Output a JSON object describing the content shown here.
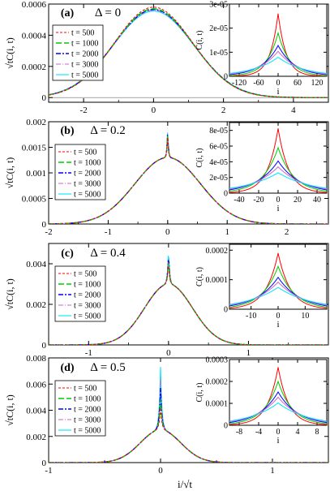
{
  "figure": {
    "xlabel": "i/√t",
    "ylabel": "√tC(i, t)"
  },
  "colors": {
    "t500": "#ff0000",
    "t1000": "#00cc00",
    "t2000": "#0000ff",
    "t3000": "#cc66cc",
    "t5000": "#00e5ff",
    "axis": "#000000"
  },
  "chart_data": [
    {
      "type": "line",
      "panel": "(a)",
      "annotation": "Δ = 0",
      "xlim": [
        -3.0,
        5.0
      ],
      "ylim": [
        -3e-05,
        0.0006
      ],
      "xticks": [
        -2,
        0,
        2,
        4
      ],
      "xtick_labels": [
        "-2",
        "0",
        "2",
        "4"
      ],
      "yticks": [
        0,
        0.0002,
        0.0004,
        0.0006
      ],
      "ytick_labels": [
        "0",
        "0.0002",
        "0.0004",
        "0.0006"
      ],
      "ylabel": "√tC(i, t)",
      "legend": [
        "t = 500",
        "t = 1000",
        "t = 2000",
        "t = 3000",
        "t = 5000"
      ],
      "series": [
        {
          "name": "t = 500",
          "peak": 0.00058,
          "width": 1.12,
          "cusp": 0
        },
        {
          "name": "t = 1000",
          "peak": 0.00057,
          "width": 1.13,
          "cusp": 0
        },
        {
          "name": "t = 2000",
          "peak": 0.000565,
          "width": 1.14,
          "cusp": 0
        },
        {
          "name": "t = 3000",
          "peak": 0.00056,
          "width": 1.14,
          "cusp": 0
        },
        {
          "name": "t = 5000",
          "peak": 0.000555,
          "width": 1.15,
          "cusp": 0
        }
      ],
      "inset": {
        "xlabel": "i",
        "ylabel": "C(i, t)",
        "xlim": [
          -150,
          150
        ],
        "ylim": [
          0,
          3e-05
        ],
        "xticks": [
          -120,
          -60,
          0,
          60,
          120
        ],
        "xtick_labels": [
          "-120",
          "-60",
          "0",
          "60",
          "120"
        ],
        "yticks": [
          0,
          1e-05,
          2e-05,
          3e-05
        ],
        "ytick_labels": [
          "0",
          "1e-05",
          "2e-05",
          "3e-05"
        ],
        "series": [
          {
            "name": "t = 500",
            "peak": 2.6e-05,
            "width": 25
          },
          {
            "name": "t = 1000",
            "peak": 1.8e-05,
            "width": 36
          },
          {
            "name": "t = 2000",
            "peak": 1.28e-05,
            "width": 51
          },
          {
            "name": "t = 3000",
            "peak": 1.04e-05,
            "width": 62
          },
          {
            "name": "t = 5000",
            "peak": 7.9e-06,
            "width": 80
          }
        ]
      }
    },
    {
      "type": "line",
      "panel": "(b)",
      "annotation": "Δ = 0.2",
      "xlim": [
        -2.0,
        2.7
      ],
      "ylim": [
        0,
        0.002
      ],
      "xticks": [
        -2,
        -1,
        0,
        1,
        2
      ],
      "xtick_labels": [
        "-2",
        "-1",
        "0",
        "1",
        "2"
      ],
      "yticks": [
        0,
        0.0005,
        0.001,
        0.0015,
        0.002
      ],
      "ytick_labels": [
        "0",
        "0.0005",
        "0.001",
        "0.0015",
        "0.002"
      ],
      "ylabel": "√tC(i, t)",
      "legend": [
        "t = 500",
        "t = 1000",
        "t = 2000",
        "t = 3000",
        "t = 5000"
      ],
      "series": [
        {
          "name": "t = 500",
          "peak": 0.0013,
          "width": 0.55,
          "cusp": 0.00048
        },
        {
          "name": "t = 1000",
          "peak": 0.0013,
          "width": 0.55,
          "cusp": 0.00052
        },
        {
          "name": "t = 2000",
          "peak": 0.0013,
          "width": 0.55,
          "cusp": 0.00055
        },
        {
          "name": "t = 3000",
          "peak": 0.0013,
          "width": 0.55,
          "cusp": 0.00057
        },
        {
          "name": "t = 5000",
          "peak": 0.0013,
          "width": 0.55,
          "cusp": 0.0006
        }
      ],
      "inset": {
        "xlabel": "i",
        "ylabel": "C(i, t)",
        "xlim": [
          -50,
          50
        ],
        "ylim": [
          0,
          9e-05
        ],
        "xticks": [
          -40,
          -20,
          0,
          20,
          40
        ],
        "xtick_labels": [
          "-40",
          "-20",
          "0",
          "20",
          "40"
        ],
        "yticks": [
          0,
          2e-05,
          4e-05,
          6e-05,
          8e-05
        ],
        "ytick_labels": [
          "0",
          "2e-05",
          "4e-05",
          "6e-05",
          "8e-05"
        ],
        "series": [
          {
            "name": "t = 500",
            "peak": 8.25e-05,
            "width": 11
          },
          {
            "name": "t = 1000",
            "peak": 5.8e-05,
            "width": 16
          },
          {
            "name": "t = 2000",
            "peak": 4.1e-05,
            "width": 22
          },
          {
            "name": "t = 3000",
            "peak": 3.35e-05,
            "width": 27
          },
          {
            "name": "t = 5000",
            "peak": 2.6e-05,
            "width": 35
          }
        ]
      }
    },
    {
      "type": "line",
      "panel": "(c)",
      "annotation": "Δ = 0.4",
      "xlim": [
        -1.5,
        2.0
      ],
      "ylim": [
        0,
        0.005
      ],
      "xticks": [
        -1,
        0,
        1
      ],
      "xtick_labels": [
        "-1",
        "0",
        "1"
      ],
      "yticks": [
        0,
        0.002,
        0.004
      ],
      "ytick_labels": [
        "0",
        "0.002",
        "0.004"
      ],
      "ylabel": "√tC(i, t)",
      "legend": [
        "t = 500",
        "t = 1000",
        "t = 2000",
        "t = 3000",
        "t = 5000"
      ],
      "series": [
        {
          "name": "t = 500",
          "peak": 0.003,
          "width": 0.3,
          "cusp": 0.0012
        },
        {
          "name": "t = 1000",
          "peak": 0.003,
          "width": 0.3,
          "cusp": 0.0014
        },
        {
          "name": "t = 2000",
          "peak": 0.003,
          "width": 0.3,
          "cusp": 0.0016
        },
        {
          "name": "t = 3000",
          "peak": 0.003,
          "width": 0.3,
          "cusp": 0.0017
        },
        {
          "name": "t = 5000",
          "peak": 0.003,
          "width": 0.3,
          "cusp": 0.0019
        }
      ],
      "inset": {
        "xlabel": "i",
        "ylabel": "C(i, t)",
        "xlim": [
          -18,
          18
        ],
        "ylim": [
          0,
          0.00022
        ],
        "xticks": [
          -10,
          0,
          10
        ],
        "xtick_labels": [
          "-10",
          "0",
          "10"
        ],
        "yticks": [
          0,
          0.0001,
          0.0002
        ],
        "ytick_labels": [
          "0",
          "0.0001",
          "0.0002"
        ],
        "series": [
          {
            "name": "t = 500",
            "peak": 0.00019,
            "width": 4.5
          },
          {
            "name": "t = 1000",
            "peak": 0.000145,
            "width": 6.0
          },
          {
            "name": "t = 2000",
            "peak": 0.000108,
            "width": 8.0
          },
          {
            "name": "t = 3000",
            "peak": 9.2e-05,
            "width": 9.5
          },
          {
            "name": "t = 5000",
            "peak": 7.4e-05,
            "width": 12
          }
        ]
      }
    },
    {
      "type": "line",
      "panel": "(d)",
      "annotation": "Δ = 0.5",
      "xlim": [
        -1.0,
        1.5
      ],
      "ylim": [
        0,
        0.008
      ],
      "xticks": [
        -1,
        0,
        1
      ],
      "xtick_labels": [
        "-1",
        "0",
        "1"
      ],
      "yticks": [
        0,
        0.002,
        0.004,
        0.006,
        0.008
      ],
      "ytick_labels": [
        "0",
        "0.002",
        "0.004",
        "0.006",
        "0.008"
      ],
      "ylabel": "√tC(i, t)",
      "xlabel": "i/√t",
      "legend": [
        "t = 500",
        "t = 1000",
        "t = 2000",
        "t = 3000",
        "t = 5000"
      ],
      "series": [
        {
          "name": "t = 500",
          "peak": 0.0025,
          "width": 0.18,
          "cusp": 0.0017
        },
        {
          "name": "t = 1000",
          "peak": 0.0025,
          "width": 0.18,
          "cusp": 0.0023
        },
        {
          "name": "t = 2000",
          "peak": 0.0025,
          "width": 0.18,
          "cusp": 0.0032
        },
        {
          "name": "t = 3000",
          "peak": 0.0025,
          "width": 0.18,
          "cusp": 0.0039
        },
        {
          "name": "t = 5000",
          "peak": 0.0025,
          "width": 0.18,
          "cusp": 0.0048
        }
      ],
      "inset": {
        "xlabel": "i",
        "ylabel": "C(i, t)",
        "xlim": [
          -10,
          10
        ],
        "ylim": [
          0,
          0.0003
        ],
        "xticks": [
          -8,
          -4,
          0,
          4,
          8
        ],
        "xtick_labels": [
          "-8",
          "-4",
          "0",
          "4",
          "8"
        ],
        "yticks": [
          0,
          0.0001,
          0.0002,
          0.0003
        ],
        "ytick_labels": [
          "0",
          "0.0001",
          "0.0002",
          "0.0003"
        ],
        "series": [
          {
            "name": "t = 500",
            "peak": 0.000265,
            "width": 2.2
          },
          {
            "name": "t = 1000",
            "peak": 0.0002,
            "width": 3.0
          },
          {
            "name": "t = 2000",
            "peak": 0.000152,
            "width": 4.0
          },
          {
            "name": "t = 3000",
            "peak": 0.000128,
            "width": 4.8
          },
          {
            "name": "t = 5000",
            "peak": 0.000102,
            "width": 6.0
          }
        ]
      }
    }
  ]
}
